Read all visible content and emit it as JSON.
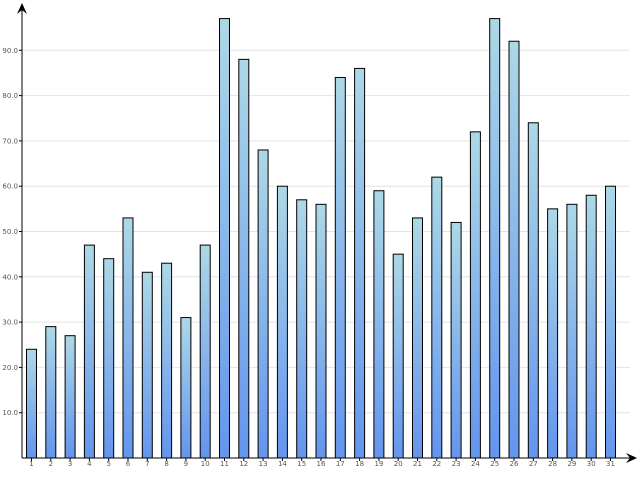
{
  "chart_data": {
    "type": "bar",
    "categories": [
      "1",
      "2",
      "3",
      "4",
      "5",
      "6",
      "7",
      "8",
      "9",
      "10",
      "11",
      "12",
      "13",
      "14",
      "15",
      "16",
      "17",
      "18",
      "19",
      "20",
      "21",
      "22",
      "23",
      "24",
      "25",
      "26",
      "27",
      "28",
      "29",
      "30",
      "31"
    ],
    "values": [
      24,
      29,
      27,
      47,
      44,
      53,
      41,
      43,
      31,
      47,
      97,
      88,
      68,
      60,
      57,
      56,
      84,
      86,
      59,
      45,
      53,
      62,
      52,
      72,
      97,
      92,
      74,
      55,
      56,
      58,
      60
    ],
    "ylim": [
      0,
      100
    ],
    "yticks": [
      "10.0",
      "20.0",
      "30.0",
      "40.0",
      "50.0",
      "60.0",
      "70.0",
      "80.0",
      "90.0"
    ],
    "grid": true,
    "legend": "none",
    "colors": {
      "bar_top": "#add8e6",
      "bar_bottom": "#6495ed",
      "bar_border": "#000000",
      "grid": "#e4e4e4",
      "axis": "#000000"
    }
  }
}
